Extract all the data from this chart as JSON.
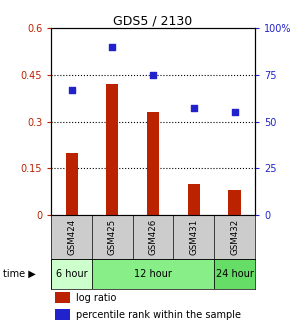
{
  "title": "GDS5 / 2130",
  "samples": [
    "GSM424",
    "GSM425",
    "GSM426",
    "GSM431",
    "GSM432"
  ],
  "log_ratio": [
    0.2,
    0.42,
    0.33,
    0.1,
    0.08
  ],
  "percentile_rank": [
    67,
    90,
    75,
    57,
    55
  ],
  "bar_color": "#bb2200",
  "dot_color": "#2222cc",
  "ylim_left": [
    0,
    0.6
  ],
  "ylim_right": [
    0,
    100
  ],
  "yticks_left": [
    0,
    0.15,
    0.3,
    0.45,
    0.6
  ],
  "ytick_labels_left": [
    "0",
    "0.15",
    "0.3",
    "0.45",
    "0.6"
  ],
  "yticks_right": [
    0,
    25,
    50,
    75,
    100
  ],
  "ytick_labels_right": [
    "0",
    "25",
    "50",
    "75",
    "100%"
  ],
  "time_config": [
    [
      0,
      0,
      "#ccffcc",
      "6 hour"
    ],
    [
      1,
      3,
      "#88ee88",
      "12 hour"
    ],
    [
      4,
      4,
      "#66dd66",
      "24 hour"
    ]
  ],
  "legend_log_ratio": "log ratio",
  "legend_percentile": "percentile rank within the sample",
  "bg_color": "#ffffff"
}
